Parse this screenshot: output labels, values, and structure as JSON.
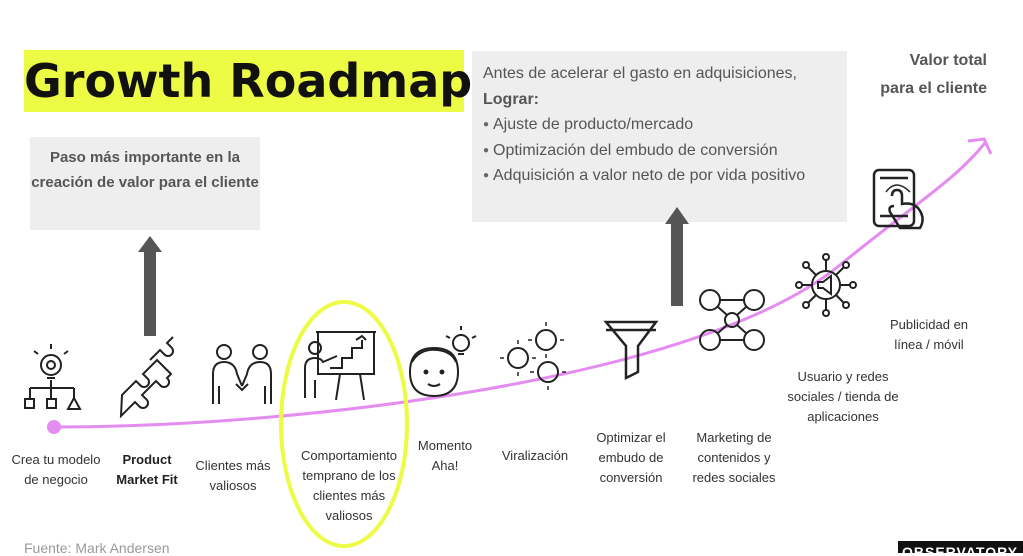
{
  "title": "Growth Roadmap",
  "left_box": {
    "text": "Paso más importante en la creación de valor para el cliente"
  },
  "right_box": {
    "intro": "Antes de acelerar el gasto en adquisiciones,",
    "lead": "Lograr:",
    "bullets": [
      "Ajuste de producto/mercado",
      "Optimización del embudo de conversión",
      "Adquisición a valor neto de por vida positivo"
    ]
  },
  "goal": "Valor total para el cliente",
  "stages": [
    {
      "label": "Crea tu modelo de negocio",
      "icon": "lightbulb-gear-icon"
    },
    {
      "label": "Product Market Fit",
      "icon": "puzzle-pieces-icon"
    },
    {
      "label": "Clientes más valiosos",
      "icon": "handshake-people-icon"
    },
    {
      "label": "Comportamiento temprano de los clientes más valiosos",
      "icon": "presentation-board-icon"
    },
    {
      "label": "Momento Aha!",
      "icon": "person-idea-icon"
    },
    {
      "label": "Viralización",
      "icon": "virus-icon"
    },
    {
      "label": "Optimizar el embudo de conversión",
      "icon": "funnel-icon"
    },
    {
      "label": "Marketing de contenidos y redes sociales",
      "icon": "network-people-icon"
    },
    {
      "label": "Usuario y redes sociales / tienda de aplicaciones",
      "icon": ""
    },
    {
      "label": "Publicidad en línea / móvil",
      "icon": "megaphone-network-icon"
    },
    {
      "label": "",
      "icon": "phone-touch-icon"
    }
  ],
  "source": "Fuente: Mark Andersen",
  "brand": "OBSERVATORY",
  "colors": {
    "title_highlight": "#ecfb43",
    "curve": "#e48cf0",
    "highlight_ring": "#ecfb43",
    "arrow": "#555555",
    "box_bg": "#eeeeee"
  }
}
